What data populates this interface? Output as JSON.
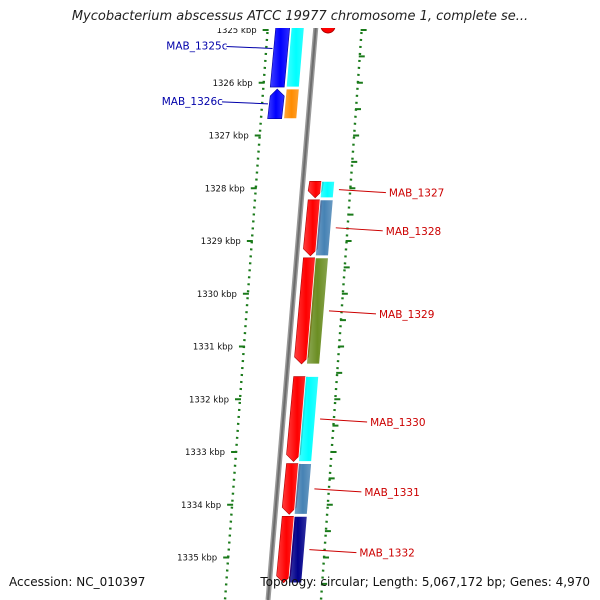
{
  "title": "Mycobacterium abscessus ATCC 19977 chromosome 1, complete se...",
  "footer": {
    "accession": "Accession: NC_010397",
    "summary": "Topology: circular; Length: 5,067,172 bp; Genes: 4,970"
  },
  "colors": {
    "backbone": "#808080",
    "tick": "#1a7a1a",
    "forward_gene_label": "#cc0000",
    "reverse_gene_label": "#0000aa"
  },
  "ticks": [
    {
      "kbp": 1325,
      "label": "1325 kbp"
    },
    {
      "kbp": 1326,
      "label": "1326 kbp"
    },
    {
      "kbp": 1327,
      "label": "1327 kbp"
    },
    {
      "kbp": 1328,
      "label": "1328 kbp"
    },
    {
      "kbp": 1329,
      "label": "1329 kbp"
    },
    {
      "kbp": 1330,
      "label": "1330 kbp"
    },
    {
      "kbp": 1331,
      "label": "1331 kbp"
    },
    {
      "kbp": 1332,
      "label": "1332 kbp"
    },
    {
      "kbp": 1333,
      "label": "1333 kbp"
    },
    {
      "kbp": 1334,
      "label": "1334 kbp"
    },
    {
      "kbp": 1335,
      "label": "1335 kbp"
    }
  ],
  "genes": [
    {
      "name": "MAB_1325c",
      "strand": "reverse",
      "start_kbp": 1324.6,
      "end_kbp": 1326.1,
      "cog_color": "#00ffff"
    },
    {
      "name": "MAB_1326c",
      "strand": "reverse",
      "start_kbp": 1326.1,
      "end_kbp": 1326.7,
      "cog_color": "#ff8c00"
    },
    {
      "name": "MAB_1327",
      "strand": "forward",
      "start_kbp": 1327.85,
      "end_kbp": 1328.2,
      "cog_color": "#00ffff"
    },
    {
      "name": "MAB_1328",
      "strand": "forward",
      "start_kbp": 1328.2,
      "end_kbp": 1329.3,
      "cog_color": "#4682b4"
    },
    {
      "name": "MAB_1329",
      "strand": "forward",
      "start_kbp": 1329.3,
      "end_kbp": 1331.35,
      "cog_color": "#6b8e23"
    },
    {
      "name": "MAB_1330",
      "strand": "forward",
      "start_kbp": 1331.55,
      "end_kbp": 1333.2,
      "cog_color": "#00ffff"
    },
    {
      "name": "MAB_1331",
      "strand": "forward",
      "start_kbp": 1333.2,
      "end_kbp": 1334.2,
      "cog_color": "#4682b4"
    },
    {
      "name": "MAB_1332",
      "strand": "forward",
      "start_kbp": 1334.2,
      "end_kbp": 1335.5,
      "cog_color": "#00008b"
    }
  ]
}
